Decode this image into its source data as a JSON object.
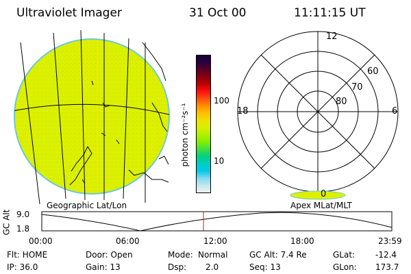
{
  "header": {
    "instrument": "Ultraviolet Imager",
    "date": "31 Oct 00",
    "time": "11:11:15 UT"
  },
  "colorbar": {
    "unit_label": "photon cm⁻²s⁻¹",
    "tick_labels": [
      "100",
      "10"
    ],
    "colors": [
      "#1a0033",
      "#2a0040",
      "#5a0024",
      "#8a0010",
      "#c00000",
      "#ff1010",
      "#ff5010",
      "#ff9000",
      "#ffc000",
      "#f0e000",
      "#d8f000",
      "#b0f000",
      "#80f000",
      "#40e040",
      "#00d080",
      "#00d0c0",
      "#00c8e8",
      "#80d8f0",
      "#c0e8f0",
      "#f0f0f0"
    ]
  },
  "left_panel": {
    "caption": "Geographic Lat/Lon",
    "disk_color": "#dcf000",
    "rim_color": "#6ec8d8"
  },
  "right_panel": {
    "caption": "Apex MLat/MLT",
    "mlt_labels": {
      "top": "12",
      "left": "18",
      "right": "6",
      "bottom": "0"
    },
    "mlat_labels": [
      "60",
      "70",
      "80"
    ],
    "oval_color": "#dcf000"
  },
  "timeline": {
    "y_title": "GC Alt",
    "y_ticks": [
      "9.0",
      "1.8"
    ],
    "x_ticks": [
      "00:00",
      "06:00",
      "12:00",
      "18:00",
      "23:59"
    ],
    "marker_color": "#ff0000"
  },
  "status": {
    "col1": [
      "Flt: HOME",
      "IP: 36.0"
    ],
    "col2": [
      "Door: Open",
      "Gain: 13"
    ],
    "col3_a": [
      "Mode:",
      "Dsp:"
    ],
    "col3_b": [
      "Normal",
      "2.0"
    ],
    "col4": [
      "GC Alt: 7.4 Re",
      "Seq: 13"
    ],
    "col5_a": [
      "GLat:",
      "GLon:"
    ],
    "col5_b": [
      "-12.4",
      "173.7"
    ]
  }
}
